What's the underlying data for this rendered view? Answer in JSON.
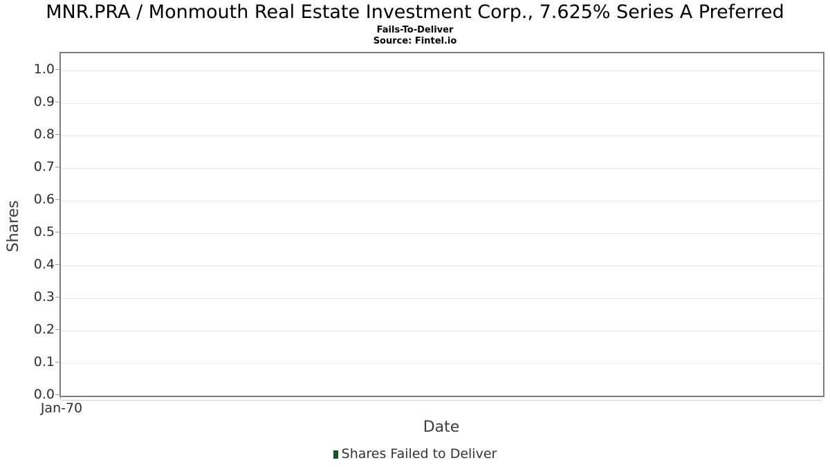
{
  "header": {
    "title": "MNR.PRA / Monmouth Real Estate Investment Corp., 7.625% Series A Preferred",
    "subtitle": "Fails-To-Deliver",
    "source": "Source: Fintel.io"
  },
  "chart_data": {
    "type": "bar",
    "title": "MNR.PRA / Monmouth Real Estate Investment Corp., 7.625% Series A Preferred",
    "subtitle": "Fails-To-Deliver",
    "source": "Source: Fintel.io",
    "xlabel": "Date",
    "ylabel": "Shares",
    "categories": [],
    "series": [
      {
        "name": "Shares Failed to Deliver",
        "color": "#1e5329",
        "values": []
      }
    ],
    "x_tick_labels": [
      "Jan-70"
    ],
    "y_ticks": [
      0.0,
      0.1,
      0.2,
      0.3,
      0.4,
      0.5,
      0.6,
      0.7,
      0.8,
      0.9,
      1.0
    ],
    "ylim": [
      0,
      1.053
    ],
    "grid": true,
    "legend_position": "bottom"
  },
  "legend": {
    "label": "Shares Failed to Deliver",
    "marker_color": "#1e5329"
  },
  "colors": {
    "plot_border": "#7d7d7d",
    "gridline": "#e9e9e9",
    "tick": "#9a9a9a",
    "text": "#2e2e2e"
  }
}
